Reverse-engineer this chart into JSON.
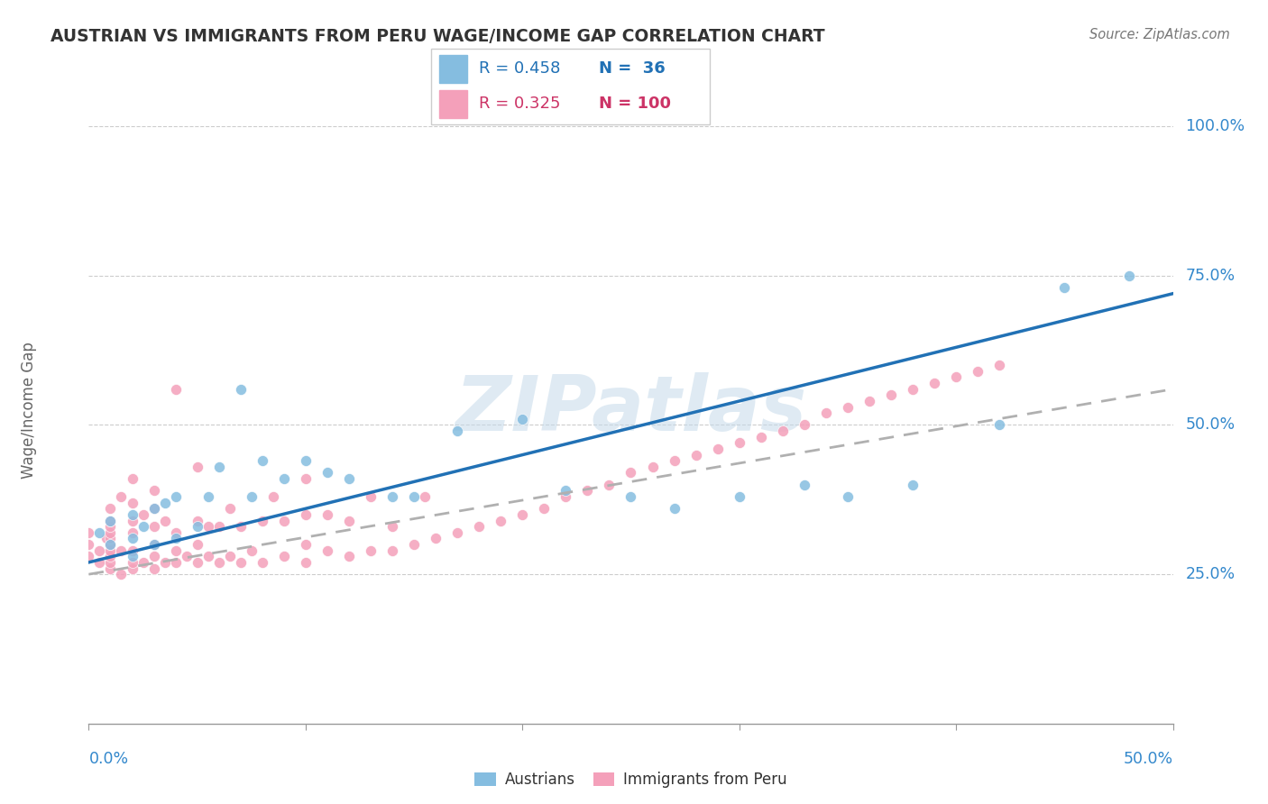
{
  "title": "AUSTRIAN VS IMMIGRANTS FROM PERU WAGE/INCOME GAP CORRELATION CHART",
  "source": "Source: ZipAtlas.com",
  "ylabel": "Wage/Income Gap",
  "watermark": "ZIPatlas",
  "legend_r_blue": "R = 0.458",
  "legend_n_blue": "N =  36",
  "legend_r_pink": "R = 0.325",
  "legend_n_pink": "N = 100",
  "blue_scatter_color": "#85bde0",
  "pink_scatter_color": "#f4a0ba",
  "blue_line_color": "#2171b5",
  "gray_line_color": "#b0b0b0",
  "blue_legend_color": "#85bde0",
  "pink_legend_color": "#f4a0ba",
  "xrange": [
    0.0,
    0.5
  ],
  "yrange": [
    0.0,
    1.05
  ],
  "ytick_vals": [
    0.25,
    0.5,
    0.75,
    1.0
  ],
  "ytick_labels": [
    "25.0%",
    "50.0%",
    "75.0%",
    "100.0%"
  ],
  "blue_line_slope": 0.9,
  "blue_line_intercept": 0.27,
  "gray_line_slope": 0.62,
  "gray_line_intercept": 0.25,
  "austrians_x": [
    0.005,
    0.01,
    0.01,
    0.02,
    0.02,
    0.02,
    0.025,
    0.03,
    0.03,
    0.035,
    0.04,
    0.04,
    0.05,
    0.055,
    0.06,
    0.07,
    0.075,
    0.08,
    0.09,
    0.1,
    0.11,
    0.12,
    0.14,
    0.15,
    0.17,
    0.2,
    0.22,
    0.25,
    0.27,
    0.3,
    0.33,
    0.35,
    0.38,
    0.42,
    0.45,
    0.48
  ],
  "austrians_y": [
    0.32,
    0.3,
    0.34,
    0.28,
    0.31,
    0.35,
    0.33,
    0.3,
    0.36,
    0.37,
    0.31,
    0.38,
    0.33,
    0.38,
    0.43,
    0.56,
    0.38,
    0.44,
    0.41,
    0.44,
    0.42,
    0.41,
    0.38,
    0.38,
    0.49,
    0.51,
    0.39,
    0.38,
    0.36,
    0.38,
    0.4,
    0.38,
    0.4,
    0.5,
    0.73,
    0.75
  ],
  "peru_x": [
    0.0,
    0.0,
    0.0,
    0.005,
    0.005,
    0.008,
    0.01,
    0.01,
    0.01,
    0.01,
    0.01,
    0.01,
    0.01,
    0.01,
    0.01,
    0.01,
    0.015,
    0.015,
    0.015,
    0.02,
    0.02,
    0.02,
    0.02,
    0.02,
    0.02,
    0.02,
    0.025,
    0.025,
    0.03,
    0.03,
    0.03,
    0.03,
    0.03,
    0.03,
    0.035,
    0.035,
    0.04,
    0.04,
    0.04,
    0.04,
    0.045,
    0.05,
    0.05,
    0.05,
    0.05,
    0.055,
    0.055,
    0.06,
    0.06,
    0.065,
    0.065,
    0.07,
    0.07,
    0.075,
    0.08,
    0.08,
    0.085,
    0.09,
    0.09,
    0.1,
    0.1,
    0.1,
    0.1,
    0.11,
    0.11,
    0.12,
    0.12,
    0.13,
    0.13,
    0.14,
    0.14,
    0.15,
    0.155,
    0.16,
    0.17,
    0.18,
    0.19,
    0.2,
    0.21,
    0.22,
    0.23,
    0.24,
    0.25,
    0.26,
    0.27,
    0.28,
    0.29,
    0.3,
    0.31,
    0.32,
    0.33,
    0.34,
    0.35,
    0.36,
    0.37,
    0.38,
    0.39,
    0.4,
    0.41,
    0.42
  ],
  "peru_y": [
    0.28,
    0.3,
    0.32,
    0.27,
    0.29,
    0.31,
    0.26,
    0.27,
    0.28,
    0.29,
    0.3,
    0.31,
    0.32,
    0.33,
    0.34,
    0.36,
    0.25,
    0.29,
    0.38,
    0.26,
    0.27,
    0.29,
    0.32,
    0.34,
    0.37,
    0.41,
    0.27,
    0.35,
    0.26,
    0.28,
    0.3,
    0.33,
    0.36,
    0.39,
    0.27,
    0.34,
    0.27,
    0.29,
    0.32,
    0.56,
    0.28,
    0.27,
    0.3,
    0.34,
    0.43,
    0.28,
    0.33,
    0.27,
    0.33,
    0.28,
    0.36,
    0.27,
    0.33,
    0.29,
    0.27,
    0.34,
    0.38,
    0.28,
    0.34,
    0.27,
    0.3,
    0.35,
    0.41,
    0.29,
    0.35,
    0.28,
    0.34,
    0.29,
    0.38,
    0.29,
    0.33,
    0.3,
    0.38,
    0.31,
    0.32,
    0.33,
    0.34,
    0.35,
    0.36,
    0.38,
    0.39,
    0.4,
    0.42,
    0.43,
    0.44,
    0.45,
    0.46,
    0.47,
    0.48,
    0.49,
    0.5,
    0.52,
    0.53,
    0.54,
    0.55,
    0.56,
    0.57,
    0.58,
    0.59,
    0.6
  ]
}
